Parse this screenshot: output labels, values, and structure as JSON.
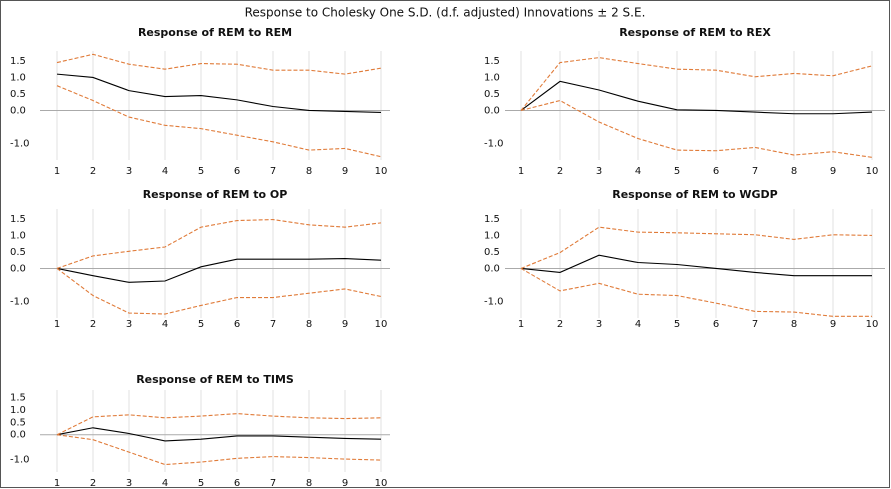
{
  "title": "Response to Cholesky One S.D. (d.f. adjusted) Innovations ± 2 S.E.",
  "chart_data": [
    {
      "type": "line",
      "title": "Response of REM to REM",
      "categories": [
        "1",
        "2",
        "3",
        "4",
        "5",
        "6",
        "7",
        "8",
        "9",
        "10"
      ],
      "ylim": [
        -1.5,
        1.8
      ],
      "yticks": [
        1.5,
        {
          "value": 1,
          "label": "1.0"
        },
        0.5,
        {
          "value": 0,
          "label": "0.0"
        },
        {
          "value": -1,
          "label": "-1.0"
        }
      ],
      "series": [
        {
          "color": "#000000",
          "dashed": false,
          "values": [
            1.1,
            1.0,
            0.6,
            0.42,
            0.45,
            0.32,
            0.12,
            0.0,
            -0.03,
            -0.06
          ]
        },
        {
          "color": "#e07b39",
          "dashed": true,
          "values": [
            1.45,
            1.7,
            1.4,
            1.25,
            1.42,
            1.4,
            1.22,
            1.22,
            1.1,
            1.28
          ]
        },
        {
          "color": "#e07b39",
          "dashed": true,
          "values": [
            0.75,
            0.3,
            -0.2,
            -0.45,
            -0.55,
            -0.75,
            -0.95,
            -1.2,
            -1.15,
            -1.4
          ]
        }
      ]
    },
    {
      "type": "line",
      "title": "Response of REM to REX",
      "categories": [
        "1",
        "2",
        "3",
        "4",
        "5",
        "6",
        "7",
        "8",
        "9",
        "10"
      ],
      "ylim": [
        -1.5,
        1.8
      ],
      "yticks": [
        1.5,
        {
          "value": 1,
          "label": "1.0"
        },
        0.5,
        {
          "value": 0,
          "label": "0.0"
        },
        {
          "value": -1,
          "label": "-1.0"
        }
      ],
      "series": [
        {
          "color": "#000000",
          "dashed": false,
          "values": [
            0,
            0.88,
            0.62,
            0.28,
            0.02,
            0.0,
            -0.05,
            -0.1,
            -0.1,
            -0.05
          ]
        },
        {
          "color": "#e07b39",
          "dashed": true,
          "values": [
            0,
            1.45,
            1.6,
            1.42,
            1.25,
            1.22,
            1.02,
            1.12,
            1.05,
            1.35
          ]
        },
        {
          "color": "#e07b39",
          "dashed": true,
          "values": [
            0,
            0.3,
            -0.35,
            -0.85,
            -1.2,
            -1.22,
            -1.12,
            -1.35,
            -1.25,
            -1.42
          ]
        }
      ]
    },
    {
      "type": "line",
      "title": "Response of REM to OP",
      "categories": [
        "1",
        "2",
        "3",
        "4",
        "5",
        "6",
        "7",
        "8",
        "9",
        "10"
      ],
      "ylim": [
        -1.5,
        1.8
      ],
      "yticks": [
        1.5,
        {
          "value": 1,
          "label": "1.0"
        },
        0.5,
        {
          "value": 0,
          "label": "0.0"
        },
        {
          "value": -1,
          "label": "-1.0"
        }
      ],
      "series": [
        {
          "color": "#000000",
          "dashed": false,
          "values": [
            0,
            -0.22,
            -0.42,
            -0.38,
            0.05,
            0.28,
            0.28,
            0.28,
            0.3,
            0.25
          ]
        },
        {
          "color": "#e07b39",
          "dashed": true,
          "values": [
            0,
            0.38,
            0.52,
            0.65,
            1.25,
            1.45,
            1.48,
            1.32,
            1.25,
            1.38
          ]
        },
        {
          "color": "#e07b39",
          "dashed": true,
          "values": [
            0,
            -0.82,
            -1.35,
            -1.38,
            -1.12,
            -0.88,
            -0.88,
            -0.75,
            -0.62,
            -0.85
          ]
        }
      ]
    },
    {
      "type": "line",
      "title": "Response of REM to WGDP",
      "categories": [
        "1",
        "2",
        "3",
        "4",
        "5",
        "6",
        "7",
        "8",
        "9",
        "10"
      ],
      "ylim": [
        -1.5,
        1.8
      ],
      "yticks": [
        1.5,
        {
          "value": 1,
          "label": "1.0"
        },
        0.5,
        {
          "value": 0,
          "label": "0.0"
        },
        {
          "value": -1,
          "label": "-1.0"
        }
      ],
      "series": [
        {
          "color": "#000000",
          "dashed": false,
          "values": [
            0,
            -0.12,
            0.4,
            0.18,
            0.12,
            0.0,
            -0.12,
            -0.22,
            -0.22,
            -0.22
          ]
        },
        {
          "color": "#e07b39",
          "dashed": true,
          "values": [
            0,
            0.48,
            1.25,
            1.1,
            1.08,
            1.05,
            1.02,
            0.88,
            1.02,
            1.0
          ]
        },
        {
          "color": "#e07b39",
          "dashed": true,
          "values": [
            0,
            -0.68,
            -0.45,
            -0.78,
            -0.82,
            -1.05,
            -1.3,
            -1.32,
            -1.45,
            -1.45
          ]
        }
      ]
    },
    {
      "type": "line",
      "title": "Response of REM to TIMS",
      "categories": [
        "1",
        "2",
        "3",
        "4",
        "5",
        "6",
        "7",
        "8",
        "9",
        "10"
      ],
      "ylim": [
        -1.5,
        1.8
      ],
      "yticks": [
        1.5,
        {
          "value": 1,
          "label": "1.0"
        },
        0.5,
        {
          "value": 0,
          "label": "0.0"
        },
        {
          "value": -1,
          "label": "-1.0"
        }
      ],
      "series": [
        {
          "color": "#000000",
          "dashed": false,
          "values": [
            0,
            0.28,
            0.05,
            -0.25,
            -0.18,
            -0.05,
            -0.05,
            -0.1,
            -0.15,
            -0.18
          ]
        },
        {
          "color": "#e07b39",
          "dashed": true,
          "values": [
            0,
            0.72,
            0.8,
            0.68,
            0.75,
            0.85,
            0.75,
            0.68,
            0.65,
            0.68
          ]
        },
        {
          "color": "#e07b39",
          "dashed": true,
          "values": [
            0,
            -0.2,
            -0.7,
            -1.2,
            -1.1,
            -0.95,
            -0.88,
            -0.92,
            -0.98,
            -1.02
          ]
        }
      ]
    }
  ]
}
